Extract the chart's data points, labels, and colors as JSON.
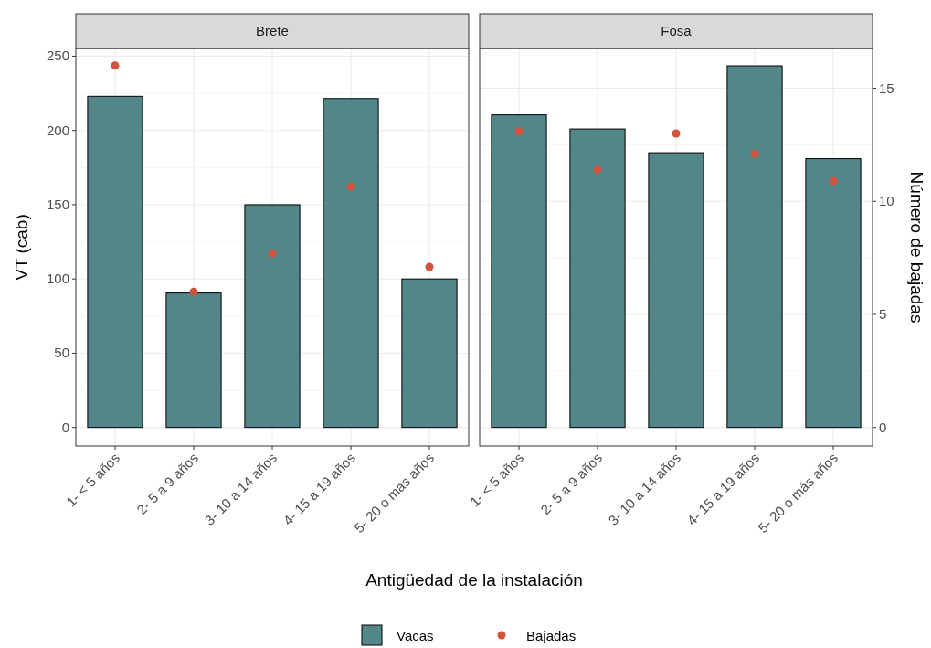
{
  "chart_data": [
    {
      "type": "bar",
      "title": "Brete",
      "ylabel": "VT (cab)",
      "xlabel": "Antigüedad de la instalación",
      "categories": [
        "1- < 5 años",
        "2- 5 a 9 años",
        "3- 10 a 14 años",
        "4- 15 a 19 años",
        "5- 20 o más años"
      ],
      "series": [
        {
          "name": "Vacas",
          "color": "#538688",
          "values": [
            223,
            90.5,
            150,
            221.5,
            100
          ]
        },
        {
          "name": "Bajadas",
          "type": "scatter",
          "axis": "y2",
          "color": "#d2533a",
          "values": [
            16,
            6,
            7.7,
            10.65,
            7.1
          ]
        }
      ],
      "ylim": [
        -12.5,
        255.2
      ],
      "yticks": [
        0,
        50,
        100,
        150,
        200,
        250
      ],
      "y2lim": [
        -0.82,
        16.76
      ],
      "grid": true,
      "legend": "bottom",
      "marker": "circle"
    },
    {
      "type": "bar",
      "title": "Fosa",
      "y2label": "Número de bajadas",
      "categories": [
        "1- < 5 años",
        "2- 5 a 9 años",
        "3- 10 a 14 años",
        "4- 15 a 19 años",
        "5- 20 o más años"
      ],
      "series": [
        {
          "name": "Vacas",
          "color": "#538688",
          "values": [
            210.5,
            201,
            185,
            243.5,
            181
          ]
        },
        {
          "name": "Bajadas",
          "type": "scatter",
          "axis": "y2",
          "color": "#d2533a",
          "values": [
            13.1,
            11.4,
            13,
            12.1,
            10.9
          ]
        }
      ],
      "ylim": [
        -12.5,
        255.2
      ],
      "y2lim": [
        -0.82,
        16.76
      ],
      "y2ticks": [
        0,
        5,
        10,
        15
      ],
      "grid": true,
      "legend": "bottom",
      "marker": "circle"
    }
  ]
}
